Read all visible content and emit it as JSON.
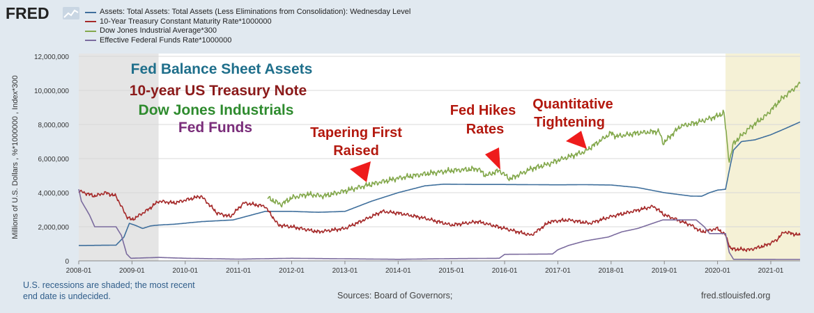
{
  "header": {
    "logo_text": "FRED"
  },
  "chart_data": {
    "type": "line",
    "ylabel": "Millions of U.S. Dollars , %*1000000 , Index*300",
    "ylim": [
      0,
      12000000
    ],
    "yticks": [
      0,
      2000000,
      4000000,
      6000000,
      8000000,
      10000000,
      12000000
    ],
    "ytick_labels": [
      "0",
      "2,000,000",
      "4,000,000",
      "6,000,000",
      "8,000,000",
      "10,000,000",
      "12,000,000"
    ],
    "xlim": [
      2008.0,
      2021.55
    ],
    "xticks": [
      2008,
      2009,
      2010,
      2011,
      2012,
      2013,
      2014,
      2015,
      2016,
      2017,
      2018,
      2019,
      2020,
      2021
    ],
    "xtick_labels": [
      "2008-01",
      "2009-01",
      "2010-01",
      "2011-01",
      "2012-01",
      "2013-01",
      "2014-01",
      "2015-01",
      "2016-01",
      "2017-01",
      "2018-01",
      "2019-01",
      "2020-01",
      "2021-01"
    ],
    "recessions": [
      [
        2008.0,
        2009.5
      ],
      [
        2020.15,
        2021.55
      ]
    ],
    "series": [
      {
        "name": "Assets: Total Assets: Total Assets (Less Eliminations from Consolidation): Wednesday Level",
        "color": "#3f6f9c",
        "x": [
          2008.0,
          2008.7,
          2008.85,
          2008.95,
          2009.05,
          2009.2,
          2009.35,
          2009.5,
          2009.8,
          2010.3,
          2010.9,
          2011.5,
          2012.0,
          2012.5,
          2013.0,
          2013.5,
          2014.0,
          2014.5,
          2014.85,
          2015.5,
          2016.0,
          2016.5,
          2017.0,
          2017.5,
          2018.0,
          2018.5,
          2019.0,
          2019.5,
          2019.7,
          2019.85,
          2020.0,
          2020.15,
          2020.22,
          2020.3,
          2020.45,
          2020.7,
          2021.0,
          2021.3,
          2021.55
        ],
        "values": [
          900000,
          920000,
          1400000,
          2200000,
          2100000,
          1900000,
          2050000,
          2100000,
          2150000,
          2300000,
          2400000,
          2900000,
          2900000,
          2850000,
          2900000,
          3500000,
          4000000,
          4400000,
          4500000,
          4480000,
          4480000,
          4470000,
          4460000,
          4470000,
          4450000,
          4300000,
          4000000,
          3800000,
          3790000,
          4000000,
          4150000,
          4200000,
          5300000,
          6500000,
          7000000,
          7100000,
          7400000,
          7800000,
          8150000
        ]
      },
      {
        "name": "10-Year Treasury Constant Maturity Rate*1000000",
        "color": "#a52a2a",
        "x": [
          2008.0,
          2008.3,
          2008.5,
          2008.7,
          2008.9,
          2009.0,
          2009.3,
          2009.5,
          2009.8,
          2010.3,
          2010.6,
          2010.85,
          2011.1,
          2011.5,
          2011.75,
          2012.0,
          2012.5,
          2013.0,
          2013.5,
          2013.7,
          2014.0,
          2014.5,
          2015.0,
          2015.5,
          2016.0,
          2016.5,
          2016.85,
          2017.2,
          2017.6,
          2018.0,
          2018.4,
          2018.8,
          2019.0,
          2019.5,
          2019.7,
          2020.0,
          2020.15,
          2020.25,
          2020.6,
          2020.9,
          2021.1,
          2021.25,
          2021.55
        ],
        "values": [
          4100000,
          3800000,
          4000000,
          3800000,
          2600000,
          2400000,
          3000000,
          3500000,
          3400000,
          3800000,
          2800000,
          2600000,
          3400000,
          3200000,
          2100000,
          2000000,
          1700000,
          1900000,
          2600000,
          2900000,
          2800000,
          2500000,
          2100000,
          2300000,
          1900000,
          1500000,
          2300000,
          2400000,
          2200000,
          2600000,
          2900000,
          3200000,
          2700000,
          2100000,
          1700000,
          1900000,
          1500000,
          700000,
          650000,
          900000,
          1200000,
          1700000,
          1500000
        ]
      },
      {
        "name": "Dow Jones Industrial Average*300",
        "color": "#83a84c",
        "x": [
          2011.55,
          2011.8,
          2012.0,
          2012.3,
          2012.6,
          2013.0,
          2013.5,
          2014.0,
          2014.5,
          2015.0,
          2015.5,
          2015.65,
          2015.9,
          2016.1,
          2016.5,
          2016.85,
          2017.0,
          2017.5,
          2018.0,
          2018.1,
          2018.5,
          2018.9,
          2018.98,
          2019.3,
          2019.6,
          2020.0,
          2020.12,
          2020.22,
          2020.3,
          2020.6,
          2020.9,
          2021.2,
          2021.55
        ],
        "values": [
          3700000,
          3300000,
          3700000,
          3900000,
          3800000,
          4100000,
          4500000,
          4850000,
          5100000,
          5300000,
          5400000,
          5000000,
          5300000,
          4800000,
          5400000,
          5700000,
          5900000,
          6400000,
          7500000,
          7300000,
          7500000,
          7600000,
          6900000,
          7900000,
          8100000,
          8500000,
          8700000,
          5800000,
          6900000,
          7800000,
          8500000,
          9500000,
          10400000
        ]
      },
      {
        "name": "Effective Federal Funds Rate*1000000",
        "color": "#7b6b9e",
        "x": [
          2008.0,
          2008.05,
          2008.2,
          2008.3,
          2008.5,
          2008.7,
          2008.8,
          2008.9,
          2008.98,
          2009.5,
          2010.0,
          2011.0,
          2012.0,
          2013.0,
          2014.0,
          2015.0,
          2015.9,
          2016.0,
          2016.9,
          2017.0,
          2017.2,
          2017.5,
          2017.95,
          2018.2,
          2018.5,
          2018.97,
          2019.6,
          2019.75,
          2019.85,
          2020.15,
          2020.22,
          2020.3,
          2021.55
        ],
        "values": [
          4200000,
          3500000,
          2700000,
          2000000,
          2000000,
          2000000,
          1500000,
          400000,
          150000,
          200000,
          150000,
          100000,
          150000,
          120000,
          90000,
          130000,
          150000,
          380000,
          400000,
          650000,
          900000,
          1160000,
          1400000,
          1700000,
          1900000,
          2400000,
          2400000,
          2000000,
          1600000,
          1600000,
          500000,
          90000,
          80000
        ]
      }
    ]
  },
  "legend": [
    {
      "label": "Assets: Total Assets: Total Assets (Less Eliminations from Consolidation): Wednesday Level",
      "color": "#3f6f9c"
    },
    {
      "label": "10-Year Treasury Constant Maturity Rate*1000000",
      "color": "#a52a2a"
    },
    {
      "label": "Dow Jones Industrial Average*300",
      "color": "#83a84c"
    },
    {
      "label": "Effective Federal Funds Rate*1000000",
      "color": "#7b6b9e"
    }
  ],
  "annotations": {
    "title1": "Fed Balance Sheet Assets",
    "title1_color": "#1f6f8b",
    "title2": "10-year US Treasury Note",
    "title2_color": "#8b1a1a",
    "title3": "Dow Jones Industrials",
    "title3_color": "#2e8b2e",
    "title4": "Fed Funds",
    "title4_color": "#7a2d7a",
    "taper_line1": "Tapering First",
    "taper_line2": "Raised",
    "hikes_line1": "Fed Hikes",
    "hikes_line2": "Rates",
    "qt_line1": "Quantitative",
    "qt_line2": "Tightening",
    "label_color": "#b3180e",
    "arrow_color": "#ee1c1c"
  },
  "footer": {
    "recession_note_line1": "U.S. recessions are shaded; the most recent",
    "recession_note_line2": "end date is undecided.",
    "sources": "Sources: Board of Governors;",
    "site": "fred.stlouisfed.org"
  }
}
